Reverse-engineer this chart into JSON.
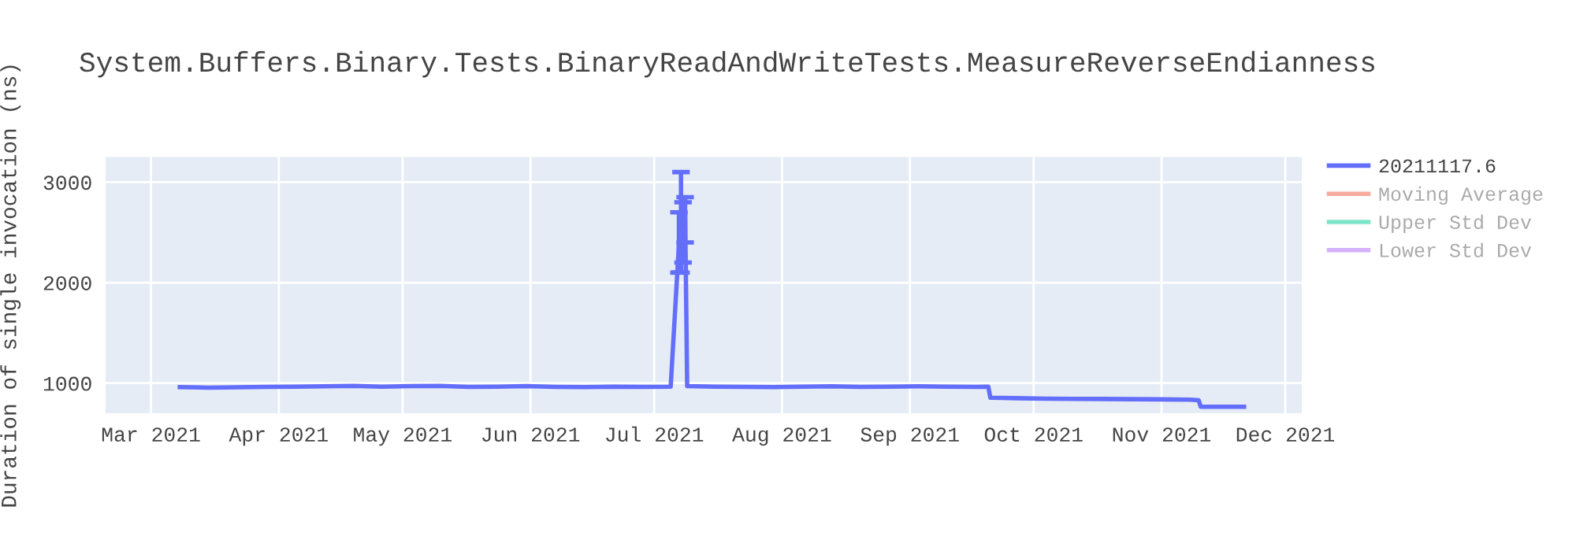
{
  "chart_data": {
    "type": "line",
    "title": "System.Buffers.Binary.Tests.BinaryReadAndWriteTests.MeasureReverseEndianness",
    "ylabel": "Duration of single invocation (ns)",
    "x": [
      "2021-03-08",
      "2021-03-15",
      "2021-03-22",
      "2021-03-29",
      "2021-04-05",
      "2021-04-12",
      "2021-04-19",
      "2021-04-26",
      "2021-05-03",
      "2021-05-10",
      "2021-05-17",
      "2021-05-24",
      "2021-05-31",
      "2021-06-07",
      "2021-06-14",
      "2021-06-21",
      "2021-06-28",
      "2021-07-05",
      "2021-07-07",
      "2021-07-07T12:00",
      "2021-07-08",
      "2021-07-08T12:00",
      "2021-07-09",
      "2021-07-16",
      "2021-07-23",
      "2021-07-30",
      "2021-08-06",
      "2021-08-13",
      "2021-08-20",
      "2021-08-27",
      "2021-09-03",
      "2021-09-10",
      "2021-09-17",
      "2021-09-20",
      "2021-09-20T12:00",
      "2021-09-27",
      "2021-10-04",
      "2021-10-11",
      "2021-10-18",
      "2021-10-25",
      "2021-11-01",
      "2021-11-08",
      "2021-11-10",
      "2021-11-10T12:00",
      "2021-11-17",
      "2021-11-21"
    ],
    "series": [
      {
        "name": "20211117.6",
        "color": "#636efa",
        "values": [
          960,
          955,
          958,
          962,
          965,
          968,
          972,
          965,
          970,
          972,
          962,
          965,
          970,
          962,
          960,
          965,
          962,
          965,
          2380,
          2600,
          2500,
          2700,
          970,
          965,
          962,
          960,
          965,
          968,
          962,
          965,
          968,
          965,
          962,
          965,
          855,
          850,
          845,
          843,
          842,
          840,
          838,
          835,
          830,
          765,
          765,
          765
        ],
        "errors": [
          null,
          null,
          null,
          null,
          null,
          null,
          null,
          null,
          null,
          null,
          null,
          null,
          null,
          null,
          null,
          null,
          null,
          null,
          [
            2100,
            2700
          ],
          [
            2100,
            3100
          ],
          [
            2200,
            2800
          ],
          [
            2400,
            2850
          ],
          null,
          null,
          null,
          null,
          null,
          null,
          null,
          null,
          null,
          null,
          null,
          null,
          null,
          null,
          null,
          null,
          null,
          null,
          null,
          null,
          null,
          null,
          null,
          null
        ]
      },
      {
        "name": "Moving Average",
        "color": "#ef553b",
        "values": [
          null,
          null,
          null,
          null,
          null,
          null,
          null,
          null,
          null,
          null,
          null,
          null,
          null,
          null,
          null,
          null,
          null,
          null,
          null,
          null,
          null,
          null,
          null,
          null,
          null,
          null,
          null,
          null,
          null,
          null,
          null,
          null,
          null,
          null,
          null,
          null,
          null,
          null,
          null,
          null,
          null,
          null,
          null,
          null,
          null,
          null
        ]
      },
      {
        "name": "Upper Std Dev",
        "color": "#00cc96",
        "values": [
          null,
          null,
          null,
          null,
          null,
          null,
          null,
          null,
          null,
          null,
          null,
          null,
          null,
          null,
          null,
          null,
          null,
          null,
          null,
          null,
          null,
          null,
          null,
          null,
          null,
          null,
          null,
          null,
          null,
          null,
          null,
          null,
          null,
          null,
          null,
          null,
          null,
          null,
          null,
          null,
          null,
          null,
          null,
          null,
          null,
          null
        ]
      },
      {
        "name": "Lower Std Dev",
        "color": "#ab63fa",
        "values": [
          null,
          null,
          null,
          null,
          null,
          null,
          null,
          null,
          null,
          null,
          null,
          null,
          null,
          null,
          null,
          null,
          null,
          null,
          null,
          null,
          null,
          null,
          null,
          null,
          null,
          null,
          null,
          null,
          null,
          null,
          null,
          null,
          null,
          null,
          null,
          null,
          null,
          null,
          null,
          null,
          null,
          null,
          null,
          null,
          null,
          null
        ]
      }
    ],
    "xlim": [
      "2021-02-18",
      "2021-12-05"
    ],
    "xticks": [
      {
        "value": "2021-03-01",
        "label": "Mar 2021"
      },
      {
        "value": "2021-04-01",
        "label": "Apr 2021"
      },
      {
        "value": "2021-05-01",
        "label": "May 2021"
      },
      {
        "value": "2021-06-01",
        "label": "Jun 2021"
      },
      {
        "value": "2021-07-01",
        "label": "Jul 2021"
      },
      {
        "value": "2021-08-01",
        "label": "Aug 2021"
      },
      {
        "value": "2021-09-01",
        "label": "Sep 2021"
      },
      {
        "value": "2021-10-01",
        "label": "Oct 2021"
      },
      {
        "value": "2021-11-01",
        "label": "Nov 2021"
      },
      {
        "value": "2021-12-01",
        "label": "Dec 2021"
      }
    ],
    "ylim": [
      700,
      3250
    ],
    "yticks": [
      1000,
      2000,
      3000
    ],
    "grid": true,
    "legend": "top right",
    "marker": "none",
    "line_style": "solid"
  }
}
